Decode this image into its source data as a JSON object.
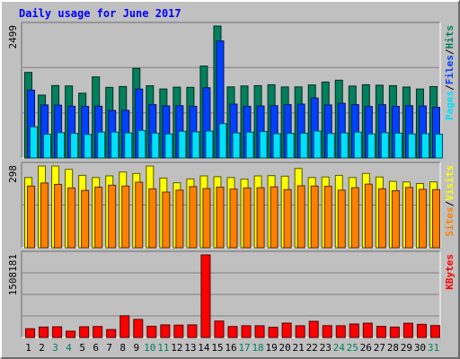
{
  "chart_data": {
    "type": "bar",
    "title": "Daily usage for June 2017",
    "categories": [
      "1",
      "2",
      "3",
      "4",
      "5",
      "6",
      "7",
      "8",
      "9",
      "10",
      "11",
      "12",
      "13",
      "14",
      "15",
      "16",
      "17",
      "18",
      "19",
      "20",
      "21",
      "22",
      "23",
      "24",
      "25",
      "26",
      "27",
      "28",
      "29",
      "30",
      "31"
    ],
    "weekend_days": [
      "3",
      "4",
      "10",
      "11",
      "17",
      "18",
      "24",
      "25",
      "31"
    ],
    "panels": [
      {
        "id": "pages-files-hits",
        "max_label": "2499",
        "ylim": [
          0,
          2499
        ],
        "grid": true,
        "legend": [
          {
            "text": "Pages",
            "color": "#00e0ff"
          },
          {
            "text": "/",
            "color": "#000000"
          },
          {
            "text": "Files",
            "color": "#0040ff"
          },
          {
            "text": "/",
            "color": "#000000"
          },
          {
            "text": "Hits",
            "color": "#00805c"
          }
        ],
        "series": [
          {
            "name": "Hits",
            "color": "#00805c",
            "values": [
              1620,
              1190,
              1372,
              1365,
              1226,
              1536,
              1337,
              1353,
              1697,
              1368,
              1307,
              1341,
              1338,
              1741,
              2499,
              1346,
              1364,
              1370,
              1387,
              1345,
              1346,
              1383,
              1438,
              1473,
              1362,
              1387,
              1378,
              1370,
              1343,
              1306,
              1352
            ]
          },
          {
            "name": "Files",
            "color": "#0040ff",
            "values": [
              1285,
              1005,
              1000,
              980,
              976,
              980,
              900,
              902,
              1305,
              1010,
              985,
              990,
              978,
              1330,
              2217,
              1020,
              978,
              985,
              990,
              1010,
              1020,
              1135,
              1005,
              1035,
              1010,
              975,
              1009,
              977,
              990,
              985,
              960
            ]
          },
          {
            "name": "Pages",
            "color": "#00e0ff",
            "values": [
              590,
              450,
              480,
              465,
              445,
              490,
              490,
              475,
              520,
              470,
              455,
              505,
              495,
              510,
              650,
              475,
              490,
              500,
              460,
              465,
              470,
              510,
              465,
              475,
              490,
              455,
              480,
              470,
              455,
              460,
              450
            ]
          }
        ]
      },
      {
        "id": "visits-sites",
        "max_label": "298",
        "ylim": [
          0,
          298
        ],
        "grid": true,
        "legend": [
          {
            "text": "Sites",
            "color": "#ff8000"
          },
          {
            "text": "/",
            "color": "#000000"
          },
          {
            "text": "Visits",
            "color": "#ffff00"
          }
        ],
        "series": [
          {
            "name": "Visits",
            "color": "#ffff00",
            "values": [
              256,
              298,
              298,
              286,
              264,
              256,
              262,
              276,
              271,
              298,
              254,
              237,
              251,
              262,
              259,
              256,
              250,
              262,
              263,
              261,
              289,
              256,
              258,
              264,
              256,
              271,
              258,
              242,
              240,
              234,
              240
            ]
          },
          {
            "name": "Sites",
            "color": "#ff8000",
            "values": [
              225,
              236,
              231,
              218,
              209,
              221,
              228,
              225,
              239,
              215,
              203,
              210,
              223,
              216,
              221,
              214,
              218,
              219,
              222,
              212,
              226,
              225,
              224,
              210,
              219,
              232,
              215,
              208,
              220,
              213,
              212
            ]
          }
        ]
      },
      {
        "id": "kbytes",
        "max_label": "1508181",
        "ylim": [
          0,
          1508181
        ],
        "grid": true,
        "legend": [
          {
            "text": "KBytes",
            "color": "#ff0000"
          }
        ],
        "series": [
          {
            "name": "KBytes",
            "color": "#ff0000",
            "values": [
              160000,
              190000,
              195000,
              115000,
              196000,
              200000,
              145000,
              396000,
              330000,
              205000,
              230000,
              225000,
              230000,
              1508181,
              300000,
              200000,
              214000,
              214000,
              186000,
              262000,
              214000,
              295000,
              216000,
              214000,
              246000,
              261000,
              203000,
              190000,
              260000,
              240000,
              218000
            ]
          }
        ]
      }
    ]
  }
}
